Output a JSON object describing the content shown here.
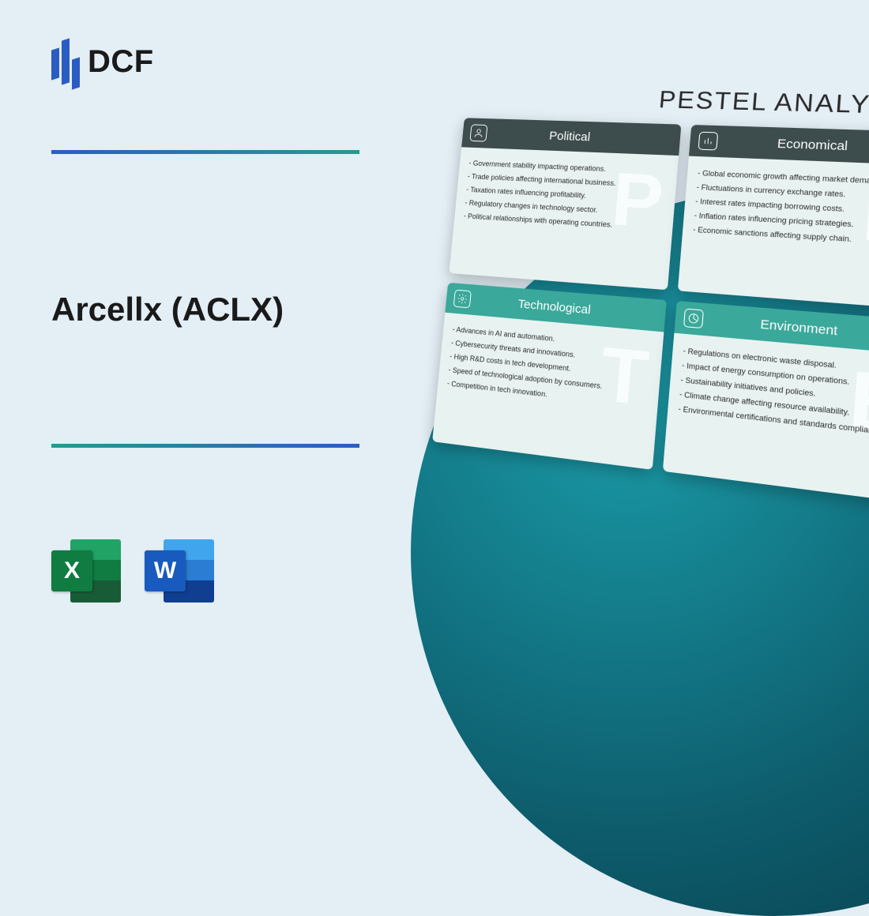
{
  "logo": {
    "text": "DCF"
  },
  "title": "Arcellx (ACLX)",
  "fileIcons": {
    "excel": "X",
    "word": "W"
  },
  "pestel": {
    "heading": "PESTEL ANALYSIS",
    "cards": [
      {
        "title": "Political",
        "headerClass": "dark",
        "watermark": "P",
        "iconGlyph": "person",
        "items": [
          "- Government stability impacting operations.",
          "- Trade policies affecting international business.",
          "- Taxation rates influencing profitability.",
          "- Regulatory changes in technology sector.",
          "- Political relationships with operating countries."
        ]
      },
      {
        "title": "Economical",
        "headerClass": "dark",
        "watermark": "E",
        "iconGlyph": "chart",
        "items": [
          "- Global economic growth affecting market demand.",
          "- Fluctuations in currency exchange rates.",
          "- Interest rates impacting borrowing costs.",
          "- Inflation rates influencing pricing strategies.",
          "- Economic sanctions affecting supply chain."
        ]
      },
      {
        "title": "Technological",
        "headerClass": "teal",
        "watermark": "T",
        "iconGlyph": "gear",
        "items": [
          "- Advances in AI and automation.",
          "- Cybersecurity threats and innovations.",
          "- High R&D costs in tech development.",
          "- Speed of technological adoption by consumers.",
          "- Competition in tech innovation."
        ]
      },
      {
        "title": "Environment",
        "headerClass": "teal",
        "watermark": "E",
        "iconGlyph": "pie",
        "items": [
          "- Regulations on electronic waste disposal.",
          "- Impact of energy consumption on operations.",
          "- Sustainability initiatives and policies.",
          "- Climate change affecting resource availability.",
          "- Environmental certifications and standards compliance."
        ]
      }
    ]
  },
  "colors": {
    "bg": "#e3eef5",
    "gradientA": "#2b5cc4",
    "gradientB": "#269b8c",
    "teal": "#3aa89a",
    "darkHeader": "#3d4c4c"
  }
}
